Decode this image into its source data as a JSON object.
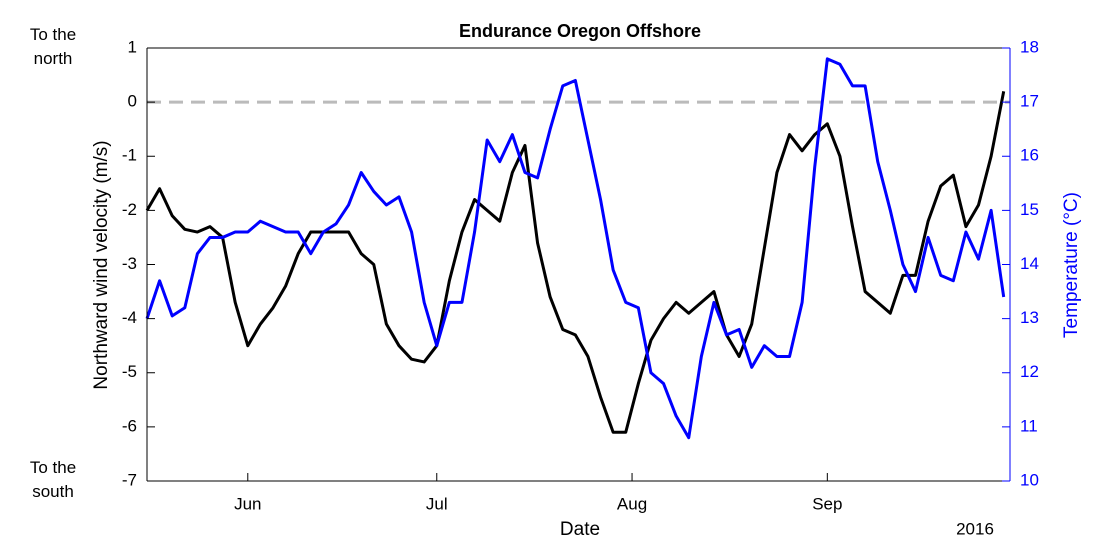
{
  "chart_data": {
    "type": "line",
    "title": "Endurance Oregon Offshore",
    "xlabel": "Date",
    "x_secondary_label": "2016",
    "ylabel": "Northward wind velocity (m/s)",
    "y2label": "Temperature (°C)",
    "y2color": "#0000ff",
    "annotations": [
      {
        "text": "To the north",
        "y": 1
      },
      {
        "text": "To the south",
        "y": -7
      }
    ],
    "hline": {
      "value": 0,
      "color": "#bbbbbb"
    },
    "x": [
      137,
      139,
      141,
      143,
      145,
      147,
      149,
      151,
      153,
      155,
      157,
      159,
      161,
      163,
      165,
      167,
      169,
      171,
      173,
      175,
      177,
      179,
      181,
      183,
      185,
      187,
      189,
      191,
      193,
      195,
      197,
      199,
      201,
      203,
      205,
      207,
      209,
      211,
      213,
      215,
      217,
      219,
      221,
      223,
      225,
      227,
      229,
      231,
      233,
      235,
      237,
      239,
      241,
      243,
      245,
      247,
      249,
      251,
      253,
      255,
      257,
      259,
      261,
      263,
      265,
      267,
      269,
      271,
      273
    ],
    "xlim": [
      137,
      274
    ],
    "xticks": [
      {
        "value": 153,
        "label": "Jun"
      },
      {
        "value": 183,
        "label": "Jul"
      },
      {
        "value": 214,
        "label": "Aug"
      },
      {
        "value": 245,
        "label": "Sep"
      }
    ],
    "ylim": [
      -7,
      1
    ],
    "yticks": [
      -7,
      -6,
      -5,
      -4,
      -3,
      -2,
      -1,
      0,
      1
    ],
    "y2lim": [
      10,
      18
    ],
    "y2ticks": [
      10,
      11,
      12,
      13,
      14,
      15,
      16,
      17,
      18
    ],
    "series": [
      {
        "name": "Northward wind velocity",
        "color": "#000000",
        "values": [
          -2.0,
          -1.6,
          -2.1,
          -2.35,
          -2.4,
          -2.3,
          -2.5,
          -3.7,
          -4.5,
          -4.1,
          -3.8,
          -3.4,
          -2.8,
          -2.4,
          -2.4,
          -2.4,
          -2.4,
          -2.8,
          -3.0,
          -4.1,
          -4.5,
          -4.75,
          -4.8,
          -4.5,
          -3.3,
          -2.4,
          -1.8,
          -2.0,
          -2.2,
          -1.3,
          -0.8,
          -2.6,
          -3.6,
          -4.2,
          -4.3,
          -4.7,
          -5.45,
          -6.1,
          -6.1,
          -5.2,
          -4.4,
          -4.0,
          -3.7,
          -3.9,
          -3.7,
          -3.5,
          -4.3,
          -4.7,
          -4.1,
          -2.7,
          -1.3,
          -0.6,
          -0.9,
          -0.6,
          -0.4,
          -1.0,
          -2.3,
          -3.5,
          -3.7,
          -3.9,
          -3.2,
          -3.2,
          -2.2,
          -1.55,
          -1.35,
          -2.3,
          -1.9,
          -1.0,
          0.2
        ]
      },
      {
        "name": "Temperature",
        "color": "#0000ff",
        "axis": "y2",
        "values": [
          13.0,
          13.7,
          13.05,
          13.2,
          14.2,
          14.5,
          14.5,
          14.6,
          14.6,
          14.8,
          14.7,
          14.6,
          14.6,
          14.2,
          14.6,
          14.75,
          15.1,
          15.7,
          15.35,
          15.1,
          15.25,
          14.6,
          13.3,
          12.5,
          13.3,
          13.3,
          14.6,
          16.3,
          15.9,
          16.4,
          15.7,
          15.6,
          16.5,
          17.3,
          17.4,
          16.3,
          15.2,
          13.9,
          13.3,
          13.2,
          12.0,
          11.8,
          11.2,
          10.8,
          12.3,
          13.3,
          12.7,
          12.8,
          12.1,
          12.5,
          12.3,
          12.3,
          13.3,
          15.8,
          17.8,
          17.7,
          17.3,
          17.3,
          15.9,
          15.0,
          14.0,
          13.5,
          14.5,
          13.8,
          13.7,
          14.6,
          14.1,
          15.0,
          13.4
        ]
      }
    ]
  }
}
